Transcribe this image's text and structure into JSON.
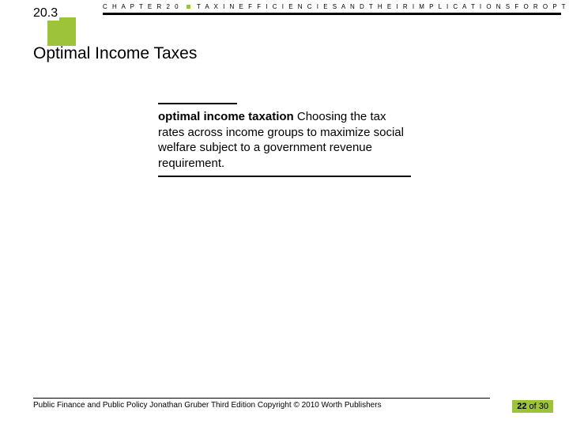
{
  "header": {
    "section_number": "20.3",
    "chapter_label": "C H A P T E R  2 0",
    "chapter_title": "T A X   I N E F F I C I E N C I E S   A N D   T H E I R   I M P L I C A T I O N S   F O R   O P T I M A L   T A X A T I O N"
  },
  "title": "Optimal Income Taxes",
  "definition": {
    "term": "optimal income taxation",
    "body": "Choosing the tax rates across income groups to maximize social welfare subject to a government revenue requirement."
  },
  "footer": {
    "text": "Public Finance and Public Policy   Jonathan Gruber   Third Edition   Copyright © 2010   Worth Publishers"
  },
  "page": {
    "current": "22",
    "sep": " of ",
    "total": "30"
  },
  "colors": {
    "accent": "#9dc33b",
    "text": "#000000",
    "background": "#ffffff"
  }
}
